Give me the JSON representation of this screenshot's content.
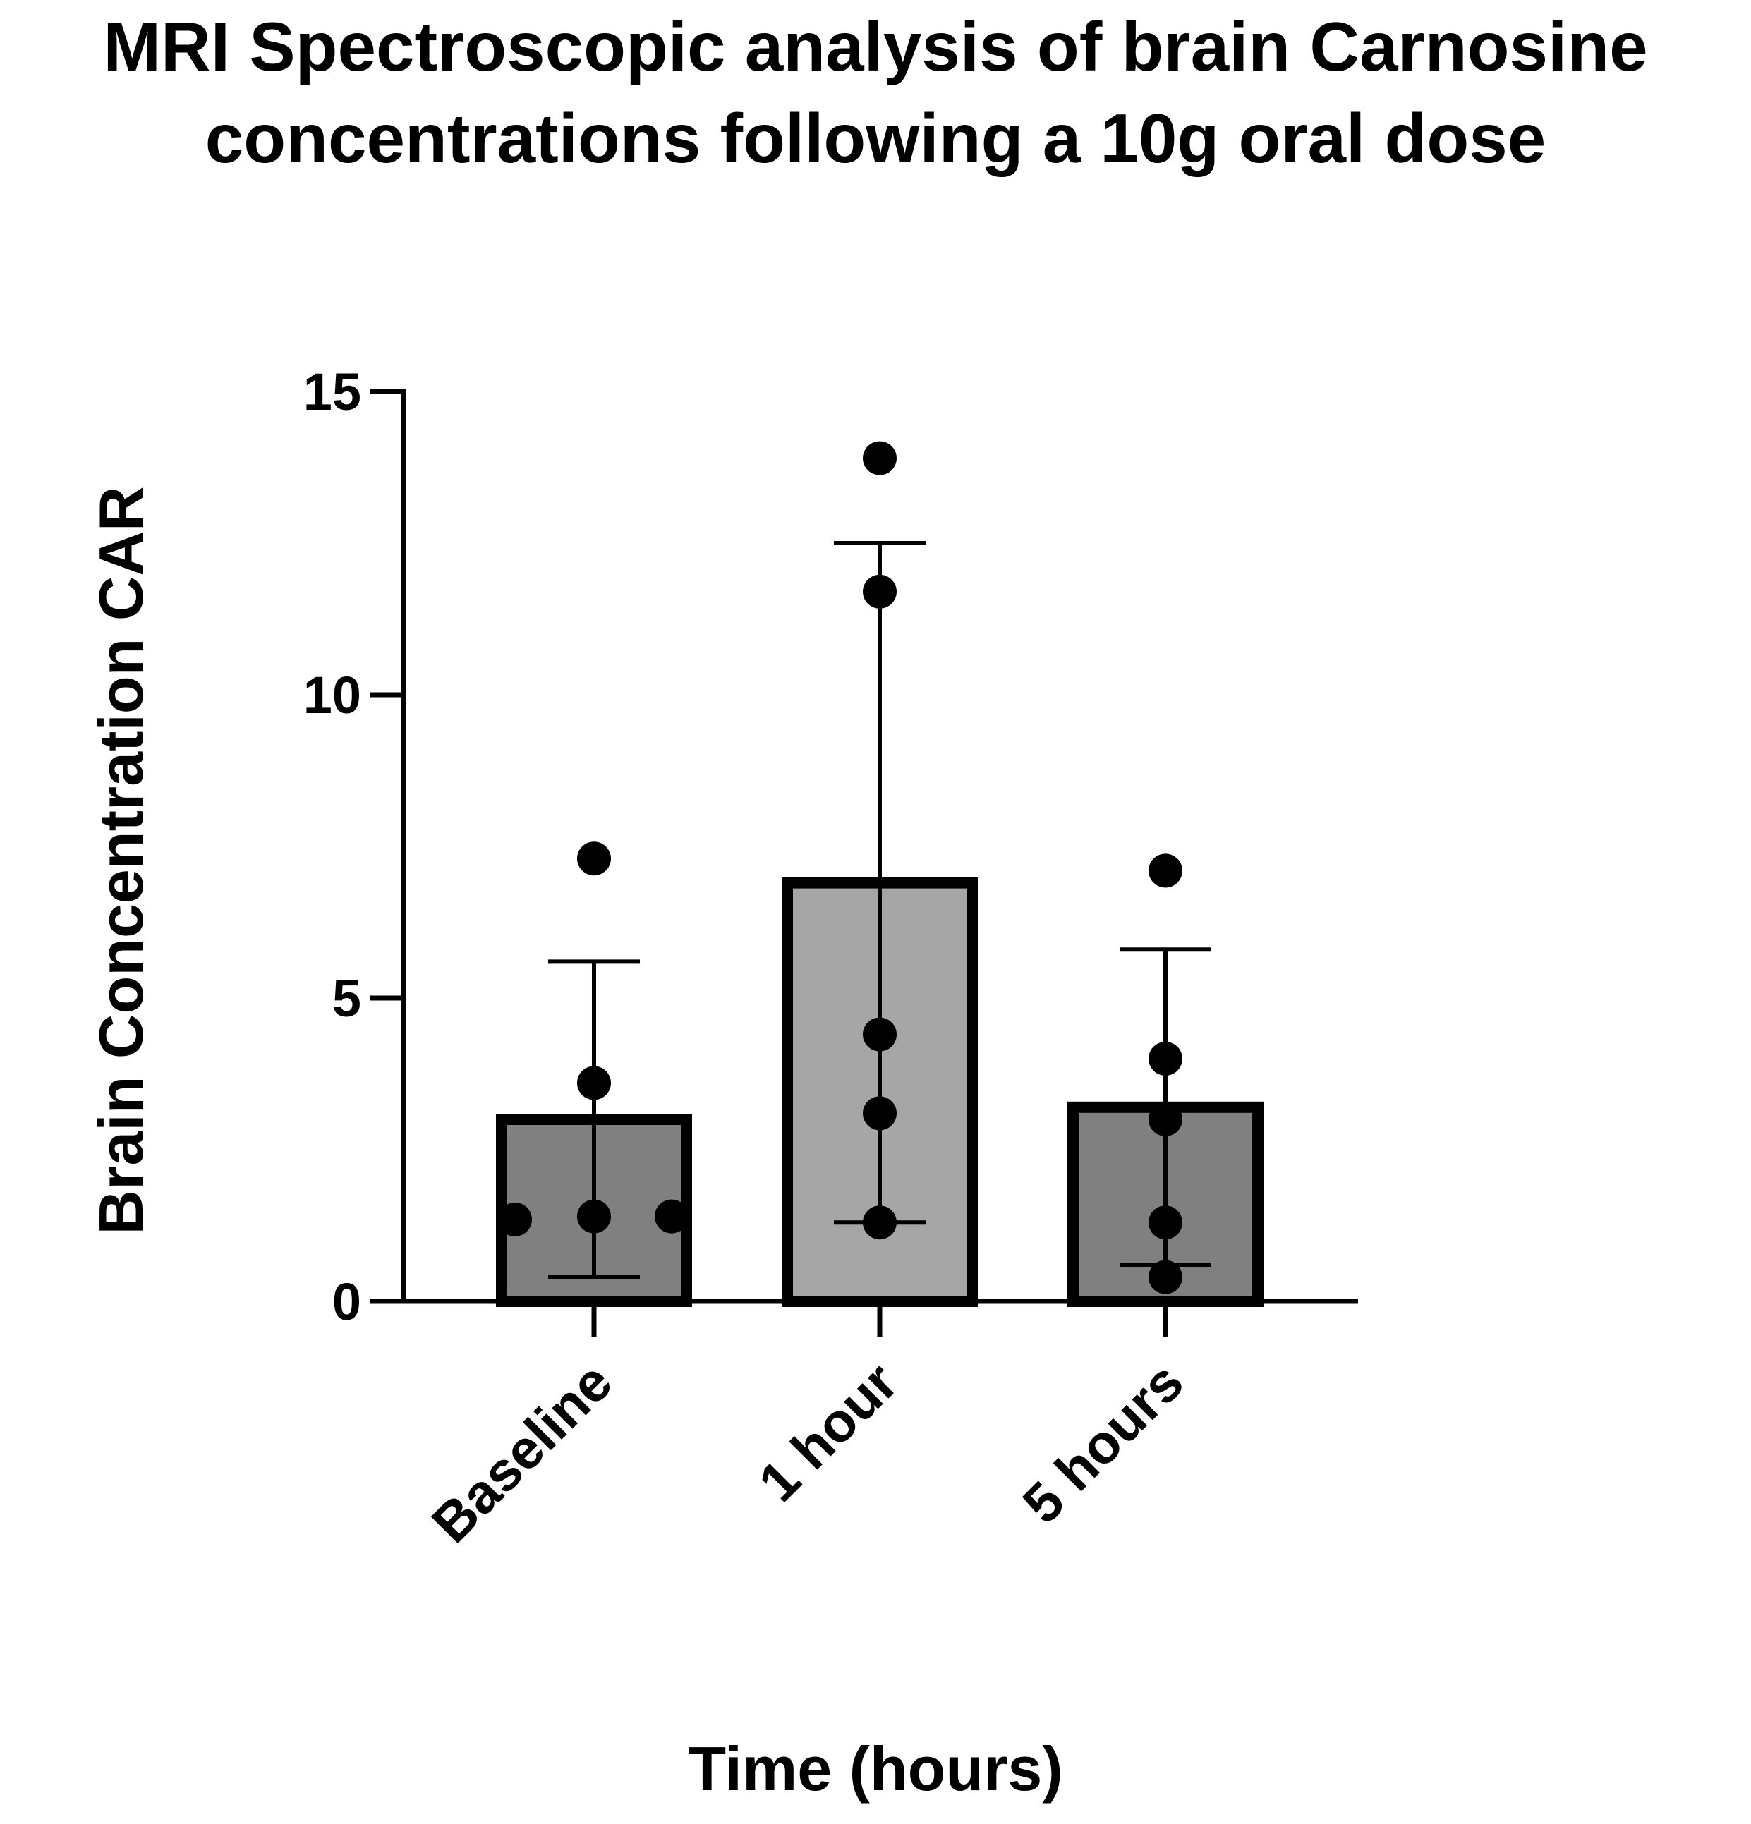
{
  "chart_data": {
    "type": "bar",
    "title_lines": [
      "MRI Spectroscopic analysis of brain Carnosine",
      "concentrations following a 10g oral dose"
    ],
    "xlabel": "Time (hours)",
    "ylabel": "Brain Concentration CAR",
    "ylim": [
      0,
      15
    ],
    "yticks": [
      "0",
      "5",
      "10",
      "15"
    ],
    "categories": [
      "Baseline",
      "1 hour",
      "5 hours"
    ],
    "values": [
      3.0,
      6.9,
      3.2
    ],
    "error_upper": [
      5.6,
      12.5,
      5.8
    ],
    "error_lower": [
      0.4,
      1.3,
      0.6
    ],
    "points": [
      [
        1.35,
        1.4,
        1.4,
        3.6,
        7.3
      ],
      [
        1.3,
        3.1,
        4.4,
        11.7,
        13.9
      ],
      [
        0.4,
        1.3,
        3.0,
        4.0,
        7.1
      ]
    ],
    "bar_colors": [
      "#808080",
      "#a6a6a6",
      "#808080"
    ],
    "grid": false,
    "legend": "none"
  }
}
